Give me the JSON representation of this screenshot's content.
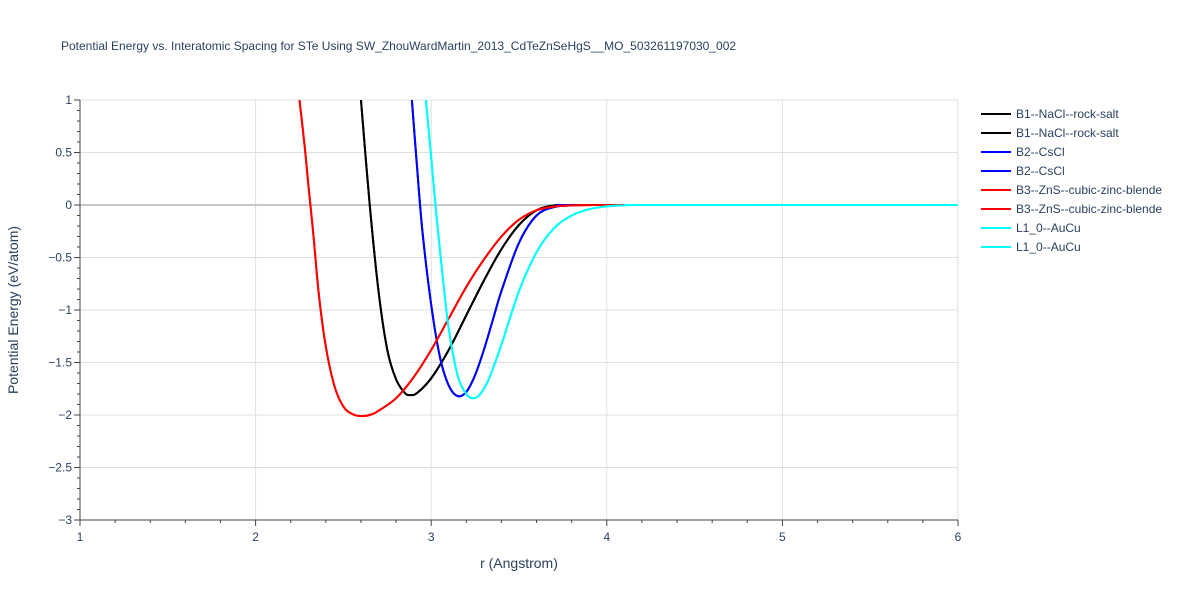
{
  "chart_data": {
    "type": "line",
    "title": "Potential Energy vs. Interatomic Spacing for STe Using SW_ZhouWardMartin_2013_CdTeZnSeHgS__MO_503261197030_002",
    "xlabel": "r (Angstrom)",
    "ylabel": "Potential Energy (eV/atom)",
    "xlim": [
      1,
      6
    ],
    "ylim": [
      -3,
      1
    ],
    "x_ticks": [
      1,
      2,
      3,
      4,
      5,
      6
    ],
    "x_tick_labels": [
      "1",
      "2",
      "3",
      "4",
      "5",
      "6"
    ],
    "y_ticks": [
      1,
      0.5,
      0,
      -0.5,
      -1,
      -1.5,
      -2,
      -2.5,
      -3
    ],
    "y_tick_labels": [
      "1",
      "0.5",
      "0",
      "−0.5",
      "−1",
      "−1.5",
      "−2",
      "−2.5",
      "−3"
    ],
    "grid": true,
    "legend_position": "top-right",
    "series": [
      {
        "name": "B1--NaCl--rock-salt",
        "color": "#000000",
        "x": [
          2.6,
          2.65,
          2.7,
          2.75,
          2.8,
          2.85,
          2.88,
          2.92,
          3.0,
          3.1,
          3.2,
          3.3,
          3.4,
          3.5,
          3.6,
          3.7,
          3.8,
          4.0,
          6.0
        ],
        "y": [
          1.0,
          0.0,
          -0.82,
          -1.38,
          -1.66,
          -1.79,
          -1.81,
          -1.79,
          -1.65,
          -1.38,
          -1.05,
          -0.72,
          -0.42,
          -0.19,
          -0.05,
          -0.005,
          0.0,
          0.0,
          0.0
        ]
      },
      {
        "name": "B1--NaCl--rock-salt",
        "color": "#000000",
        "x": [
          2.6,
          2.65,
          2.7,
          2.75,
          2.8,
          2.85,
          2.88,
          2.92,
          3.0,
          3.1,
          3.2,
          3.3,
          3.4,
          3.5,
          3.6,
          3.7,
          3.8,
          4.0,
          6.0
        ],
        "y": [
          1.0,
          0.0,
          -0.82,
          -1.38,
          -1.66,
          -1.79,
          -1.81,
          -1.79,
          -1.65,
          -1.38,
          -1.05,
          -0.72,
          -0.42,
          -0.19,
          -0.05,
          -0.005,
          0.0,
          0.0,
          0.0
        ]
      },
      {
        "name": "B2--CsCl",
        "color": "#0000ff",
        "x": [
          2.89,
          2.92,
          2.95,
          3.0,
          3.05,
          3.1,
          3.15,
          3.2,
          3.25,
          3.3,
          3.35,
          3.4,
          3.5,
          3.6,
          3.7,
          3.8,
          3.9,
          6.0
        ],
        "y": [
          1.0,
          0.35,
          -0.25,
          -0.95,
          -1.45,
          -1.72,
          -1.82,
          -1.78,
          -1.62,
          -1.38,
          -1.1,
          -0.82,
          -0.36,
          -0.1,
          -0.02,
          -0.003,
          0.0,
          0.0
        ]
      },
      {
        "name": "B2--CsCl",
        "color": "#0000ff",
        "x": [
          2.89,
          2.92,
          2.95,
          3.0,
          3.05,
          3.1,
          3.15,
          3.2,
          3.25,
          3.3,
          3.35,
          3.4,
          3.5,
          3.6,
          3.7,
          3.8,
          3.9,
          6.0
        ],
        "y": [
          1.0,
          0.35,
          -0.25,
          -0.95,
          -1.45,
          -1.72,
          -1.82,
          -1.78,
          -1.62,
          -1.38,
          -1.1,
          -0.82,
          -0.36,
          -0.1,
          -0.02,
          -0.003,
          0.0,
          0.0
        ]
      },
      {
        "name": "B3--ZnS--cubic-zinc-blende",
        "color": "#ff0000",
        "x": [
          2.25,
          2.28,
          2.3,
          2.33,
          2.36,
          2.4,
          2.45,
          2.5,
          2.55,
          2.6,
          2.65,
          2.7,
          2.8,
          2.9,
          3.0,
          3.1,
          3.2,
          3.3,
          3.4,
          3.5,
          3.6,
          3.7,
          3.8,
          3.9,
          4.1,
          6.0
        ],
        "y": [
          1.0,
          0.55,
          0.2,
          -0.3,
          -0.85,
          -1.35,
          -1.73,
          -1.92,
          -1.99,
          -2.01,
          -2.0,
          -1.96,
          -1.84,
          -1.64,
          -1.38,
          -1.08,
          -0.78,
          -0.52,
          -0.3,
          -0.14,
          -0.05,
          -0.015,
          -0.004,
          -0.001,
          0.0,
          0.0
        ]
      },
      {
        "name": "B3--ZnS--cubic-zinc-blende",
        "color": "#ff0000",
        "x": [
          2.25,
          2.28,
          2.3,
          2.33,
          2.36,
          2.4,
          2.45,
          2.5,
          2.55,
          2.6,
          2.65,
          2.7,
          2.8,
          2.9,
          3.0,
          3.1,
          3.2,
          3.3,
          3.4,
          3.5,
          3.6,
          3.7,
          3.8,
          3.9,
          4.1,
          6.0
        ],
        "y": [
          1.0,
          0.55,
          0.2,
          -0.3,
          -0.85,
          -1.35,
          -1.73,
          -1.92,
          -1.99,
          -2.01,
          -2.0,
          -1.96,
          -1.84,
          -1.64,
          -1.38,
          -1.08,
          -0.78,
          -0.52,
          -0.3,
          -0.14,
          -0.05,
          -0.015,
          -0.004,
          -0.001,
          0.0,
          0.0
        ]
      },
      {
        "name": "L1_0--AuCu",
        "color": "#00ffff",
        "x": [
          2.97,
          3.0,
          3.03,
          3.07,
          3.1,
          3.15,
          3.2,
          3.24,
          3.28,
          3.33,
          3.4,
          3.5,
          3.6,
          3.7,
          3.8,
          3.9,
          4.0,
          4.1,
          4.3,
          6.0
        ],
        "y": [
          1.0,
          0.45,
          -0.1,
          -0.75,
          -1.18,
          -1.62,
          -1.8,
          -1.84,
          -1.8,
          -1.65,
          -1.33,
          -0.82,
          -0.45,
          -0.22,
          -0.1,
          -0.04,
          -0.013,
          -0.004,
          0.0,
          0.0
        ]
      },
      {
        "name": "L1_0--AuCu",
        "color": "#00ffff",
        "x": [
          2.97,
          3.0,
          3.03,
          3.07,
          3.1,
          3.15,
          3.2,
          3.24,
          3.28,
          3.33,
          3.4,
          3.5,
          3.6,
          3.7,
          3.8,
          3.9,
          4.0,
          4.1,
          4.3,
          6.0
        ],
        "y": [
          1.0,
          0.45,
          -0.1,
          -0.75,
          -1.18,
          -1.62,
          -1.8,
          -1.84,
          -1.8,
          -1.65,
          -1.33,
          -0.82,
          -0.45,
          -0.22,
          -0.1,
          -0.04,
          -0.013,
          -0.004,
          0.0,
          0.0
        ]
      }
    ]
  }
}
